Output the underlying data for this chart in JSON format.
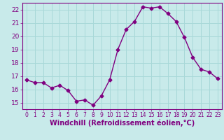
{
  "x": [
    0,
    1,
    2,
    3,
    4,
    5,
    6,
    7,
    8,
    9,
    10,
    11,
    12,
    13,
    14,
    15,
    16,
    17,
    18,
    19,
    20,
    21,
    22,
    23
  ],
  "y": [
    16.7,
    16.5,
    16.5,
    16.1,
    16.3,
    15.9,
    15.1,
    15.2,
    14.8,
    15.5,
    16.7,
    19.0,
    20.5,
    21.1,
    22.2,
    22.1,
    22.2,
    21.7,
    21.1,
    19.9,
    18.4,
    17.5,
    17.3,
    16.8
  ],
  "line_color": "#800080",
  "marker": "D",
  "marker_size": 2.5,
  "bg_color": "#c8eaea",
  "grid_color": "#a8d8d8",
  "xlabel": "Windchill (Refroidissement éolien,°C)",
  "ylabel": "",
  "ylim": [
    14.5,
    22.5
  ],
  "xlim": [
    -0.5,
    23.5
  ],
  "yticks": [
    15,
    16,
    17,
    18,
    19,
    20,
    21,
    22
  ],
  "xticks": [
    0,
    1,
    2,
    3,
    4,
    5,
    6,
    7,
    8,
    9,
    10,
    11,
    12,
    13,
    14,
    15,
    16,
    17,
    18,
    19,
    20,
    21,
    22,
    23
  ],
  "title": "",
  "xlabel_fontsize": 7,
  "tick_fontsize": 6.5,
  "xtick_fontsize": 5.5,
  "line_width": 1.0
}
